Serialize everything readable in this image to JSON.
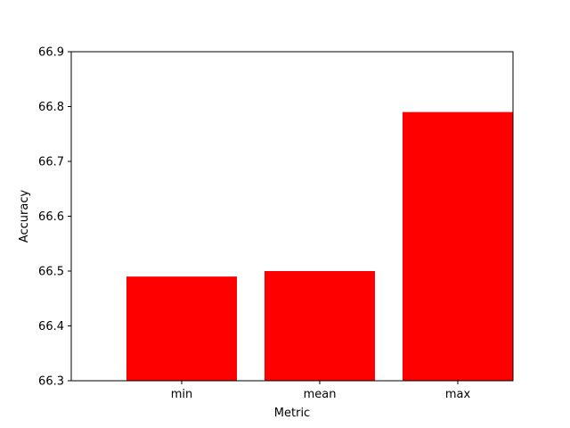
{
  "chart_data": {
    "type": "bar",
    "title": "",
    "xlabel": "Metric",
    "ylabel": "Accuracy",
    "categories": [
      "min",
      "mean",
      "max"
    ],
    "values": [
      66.49,
      66.5,
      66.79
    ],
    "ylim": [
      66.3,
      66.9
    ],
    "yticks": [
      "66.3",
      "66.4",
      "66.5",
      "66.6",
      "66.7",
      "66.8",
      "66.9"
    ],
    "bar_color": "#ff0000",
    "grid": false,
    "legend": false
  }
}
